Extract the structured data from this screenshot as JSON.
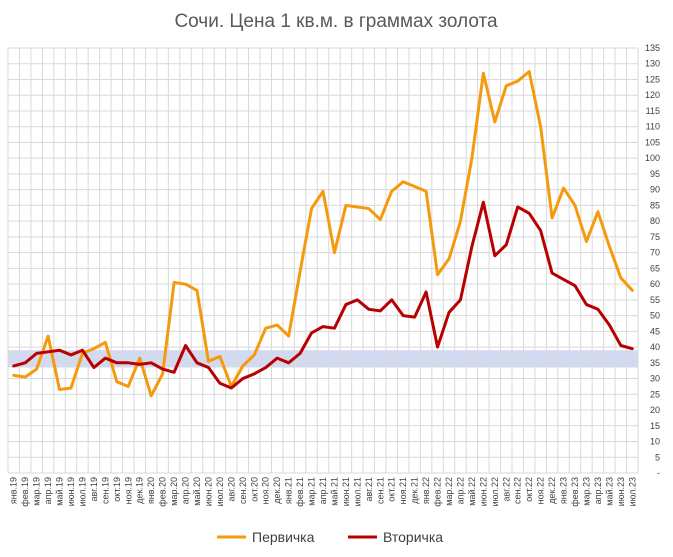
{
  "chart_data": {
    "type": "line",
    "title": "Сочи. Цена 1 кв.м. в граммах золота",
    "xlabel": "",
    "ylabel": "",
    "ylim": [
      0,
      135
    ],
    "y_ticks": [
      "-",
      "5",
      "10",
      "15",
      "20",
      "25",
      "30",
      "35",
      "40",
      "45",
      "50",
      "55",
      "60",
      "65",
      "70",
      "75",
      "80",
      "85",
      "90",
      "95",
      "100",
      "105",
      "110",
      "115",
      "120",
      "125",
      "130",
      "135"
    ],
    "grid": true,
    "y_axis_side": "right",
    "legend_position": "bottom",
    "highlight_band": {
      "from": 33.5,
      "to": 39,
      "color": "#c9d3ee"
    },
    "categories": [
      "янв.19",
      "фев.19",
      "мар.19",
      "апр.19",
      "май.19",
      "июн.19",
      "июл.19",
      "авг.19",
      "сен.19",
      "окт.19",
      "ноя.19",
      "дек.19",
      "янв.20",
      "фев.20",
      "мар.20",
      "апр.20",
      "май.20",
      "июн.20",
      "июл.20",
      "авг.20",
      "сен.20",
      "окт.20",
      "ноя.20",
      "дек.20",
      "янв.21",
      "фев.21",
      "мар.21",
      "апр.21",
      "май.21",
      "июн.21",
      "июл.21",
      "авг.21",
      "сен.21",
      "окт.21",
      "ноя.21",
      "дек.21",
      "янв.22",
      "фев.22",
      "мар.22",
      "апр.22",
      "май.22",
      "июн.22",
      "июл.22",
      "авг.22",
      "сен.22",
      "окт.22",
      "ноя.22",
      "дек.22",
      "янв.23",
      "фев.23",
      "мар.23",
      "апр.23",
      "май.23",
      "июн.23",
      "июл.23"
    ],
    "series": [
      {
        "name": "Первичка",
        "color": "#f59a0c",
        "values": [
          31,
          30.5,
          33,
          43.5,
          26.5,
          27,
          38,
          39.5,
          41.5,
          29,
          27.5,
          36.5,
          24.5,
          31.5,
          60.5,
          60,
          58,
          35.5,
          37,
          27.5,
          34,
          37.5,
          46,
          47,
          43.5,
          64,
          84,
          89.5,
          70,
          85,
          84.5,
          84,
          80.5,
          89.5,
          92.5,
          91,
          89.5,
          63,
          68,
          80,
          100,
          127,
          111.5,
          123,
          124.5,
          127.5,
          110,
          81,
          90.5,
          85,
          73.5,
          83,
          72,
          62,
          58
        ]
      },
      {
        "name": "Вторичка",
        "color": "#b80000",
        "values": [
          34,
          35,
          38,
          38.5,
          39,
          37.5,
          39,
          33.5,
          36.5,
          35,
          35,
          34.5,
          35,
          33,
          32,
          40.5,
          35,
          33.5,
          28.5,
          27,
          30,
          31.5,
          33.5,
          36.5,
          35,
          38,
          44.5,
          46.5,
          46,
          53.5,
          55,
          52,
          51.5,
          55,
          50,
          49.5,
          57.5,
          40,
          51,
          55,
          72,
          86,
          69,
          72.5,
          84.5,
          82.5,
          77,
          63.5,
          61.5,
          59.5,
          53.5,
          52,
          47,
          40.5,
          39.5
        ]
      }
    ]
  }
}
